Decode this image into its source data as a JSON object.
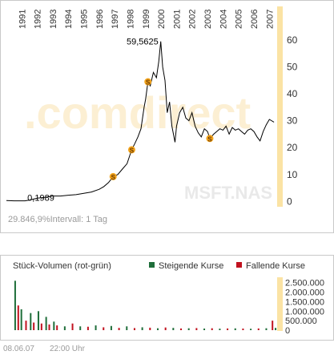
{
  "colors": {
    "price_line": "#000000",
    "accent_band": "#fbe3a4",
    "watermark": "#fcefd3",
    "volume_up": "#1f6e3a",
    "volume_down": "#c1121f",
    "split_marker": "#f2a31b"
  },
  "chart_data": [
    {
      "type": "line",
      "title": "",
      "watermark": ".comdirect",
      "symbol": "MSFT.NAS",
      "x_tick_labels": [
        "1991",
        "1992",
        "1993",
        "1994",
        "1995",
        "1996",
        "1997",
        "1998",
        "1999",
        "2000",
        "2001",
        "2002",
        "2003",
        "2004",
        "2005",
        "2006",
        "2007"
      ],
      "y_tick_labels": [
        "0",
        "10",
        "20",
        "30",
        "40",
        "50",
        "60"
      ],
      "ylim": [
        -2,
        63
      ],
      "y_axis_side": "right",
      "grid": false,
      "annotations": [
        {
          "text": "0,1989",
          "x": 1991.2,
          "y": 0.1989
        },
        {
          "text": "59,5625",
          "x": 1999.98,
          "y": 59.5625
        }
      ],
      "split_markers": [
        {
          "label": "S",
          "x": 1996.9,
          "y": 9.2
        },
        {
          "label": "S",
          "x": 1998.1,
          "y": 19.2
        },
        {
          "label": "S",
          "x": 1999.15,
          "y": 44.5
        },
        {
          "label": "S",
          "x": 2003.15,
          "y": 23.4
        }
      ],
      "series": [
        {
          "x": [
            1990.0,
            1990.5,
            1991.0,
            1991.2,
            1991.5,
            1992.0,
            1992.5,
            1993.0,
            1993.5,
            1994.0,
            1994.5,
            1995.0,
            1995.5,
            1996.0,
            1996.3,
            1996.6,
            1996.9,
            1997.2,
            1997.5,
            1997.8,
            1998.1,
            1998.3,
            1998.5,
            1998.7,
            1998.9,
            1999.0,
            1999.15,
            1999.3,
            1999.5,
            1999.7,
            1999.85,
            1999.98,
            2000.1,
            2000.25,
            2000.4,
            2000.55,
            2000.7,
            2000.9,
            2001.0,
            2001.2,
            2001.4,
            2001.6,
            2001.8,
            2002.0,
            2002.2,
            2002.4,
            2002.6,
            2002.8,
            2003.0,
            2003.15,
            2003.4,
            2003.6,
            2003.8,
            2004.0,
            2004.2,
            2004.4,
            2004.6,
            2004.8,
            2005.0,
            2005.2,
            2005.4,
            2005.6,
            2005.8,
            2006.0,
            2006.2,
            2006.4,
            2006.6,
            2006.8,
            2007.0,
            2007.3
          ],
          "y": [
            0.3,
            0.2,
            0.2,
            0.2,
            0.5,
            1.2,
            1.5,
            2.0,
            2.0,
            2.3,
            2.5,
            3.0,
            3.5,
            4.5,
            5.5,
            7.0,
            9.2,
            10.0,
            12.0,
            14.0,
            19.2,
            21.5,
            24.0,
            27.0,
            35.0,
            38.0,
            44.5,
            43.0,
            48.0,
            46.0,
            52.0,
            59.5,
            50.0,
            45.0,
            33.0,
            37.0,
            28.0,
            22.0,
            28.0,
            33.0,
            35.0,
            31.0,
            30.0,
            33.0,
            28.0,
            25.5,
            24.0,
            27.0,
            26.0,
            23.4,
            25.0,
            26.0,
            27.0,
            26.5,
            28.0,
            25.0,
            27.5,
            26.5,
            27.0,
            26.0,
            25.0,
            26.5,
            27.0,
            26.0,
            24.0,
            22.5,
            26.0,
            28.5,
            30.5,
            29.5
          ]
        }
      ]
    },
    {
      "type": "bar",
      "title": "Stück-Volumen (rot-grün)",
      "series": [
        {
          "name": "Steigende Kurse"
        },
        {
          "name": "Fallende Kurse"
        }
      ],
      "y_tick_labels": [
        "0",
        "500.000",
        "1.000.000",
        "1.500.000",
        "2.000.000",
        "2.500.000"
      ],
      "ylim": [
        0,
        2700000
      ],
      "x": [
        1990.3,
        1990.5,
        1990.7,
        1991.0,
        1991.3,
        1991.5,
        1991.8,
        1992.0,
        1992.3,
        1992.5,
        1992.8,
        1993.0,
        1993.5,
        1994.0,
        1994.5,
        1995.0,
        1995.5,
        1996.0,
        1996.5,
        1997.0,
        1997.5,
        1998.0,
        1998.5,
        1999.0,
        1999.5,
        2000.0,
        2000.5,
        2001.0,
        2001.5,
        2002.0,
        2002.5,
        2003.0,
        2003.5,
        2004.0,
        2004.5,
        2005.0,
        2005.5,
        2006.0,
        2006.5,
        2006.9,
        2007.1
      ],
      "values": [
        2600000,
        1300000,
        1100000,
        500000,
        900000,
        400000,
        1000000,
        350000,
        700000,
        300000,
        450000,
        250000,
        200000,
        350000,
        200000,
        180000,
        250000,
        150000,
        220000,
        120000,
        200000,
        110000,
        150000,
        130000,
        100000,
        140000,
        120000,
        90000,
        100000,
        110000,
        85000,
        100000,
        80000,
        90000,
        95000,
        85000,
        75000,
        90000,
        100000,
        500000,
        120000
      ],
      "direction": [
        "up",
        "down",
        "up",
        "down",
        "up",
        "down",
        "up",
        "down",
        "up",
        "down",
        "up",
        "down",
        "up",
        "down",
        "up",
        "down",
        "up",
        "down",
        "up",
        "down",
        "up",
        "down",
        "up",
        "down",
        "up",
        "down",
        "up",
        "down",
        "up",
        "down",
        "up",
        "down",
        "up",
        "down",
        "up",
        "down",
        "up",
        "down",
        "up",
        "down",
        "up"
      ]
    }
  ],
  "texts": {
    "performance": "29.846,9%",
    "interval": "Intervall: 1 Tag",
    "volume_title": "Stück-Volumen (rot-grün)",
    "legend_up": "Steigende Kurse",
    "legend_down": "Fallende Kurse",
    "date": "08.06.07",
    "time": "22:00 Uhr"
  }
}
